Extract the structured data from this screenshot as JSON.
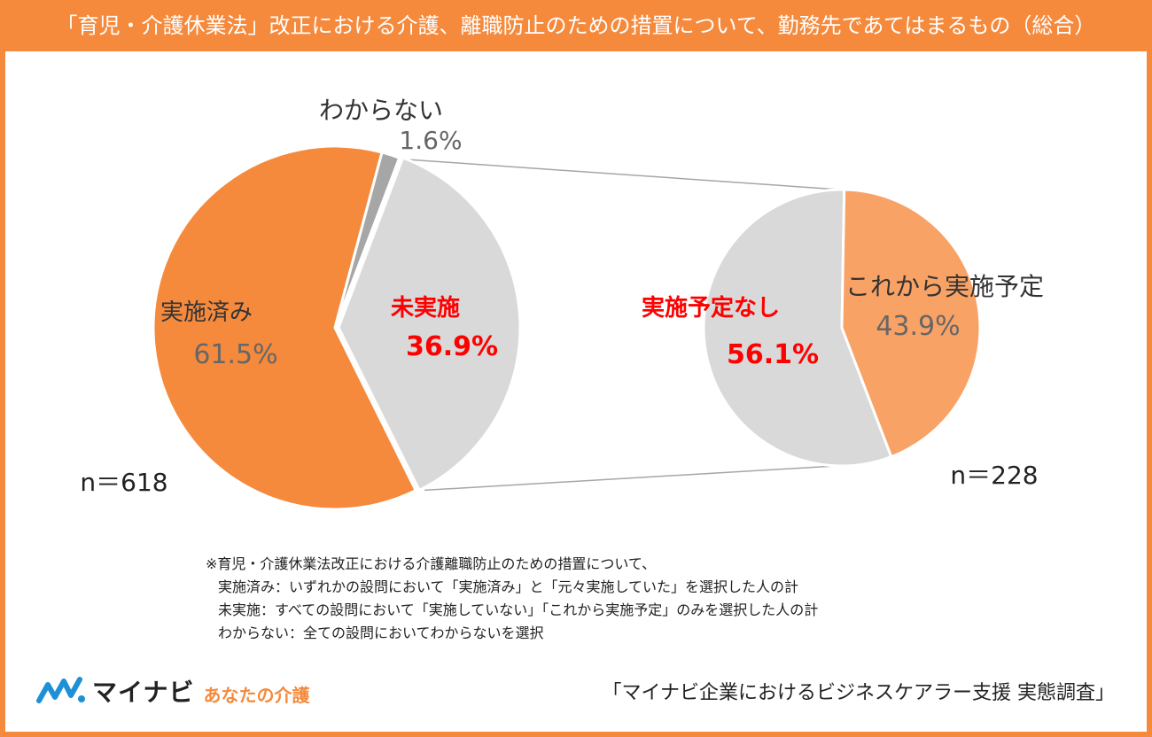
{
  "title": "「育児・介護休業法」改正における介護、離職防止のための措置について、勤務先であてはまるもの（総合）",
  "chart_data": [
    {
      "type": "pie",
      "slices": [
        {
          "label": "実施済み",
          "value": 61.5,
          "value_label": "61.5%",
          "color": "#F58A3D",
          "label_color": "#333333",
          "value_color": "#666666"
        },
        {
          "label": "わからない",
          "value": 1.6,
          "value_label": "1.6%",
          "color": "#A6A6A6",
          "label_color": "#333333",
          "value_color": "#666666"
        },
        {
          "label": "未実施",
          "value": 36.9,
          "value_label": "36.9%",
          "color": "#D9D9D9",
          "label_color": "#FF0000",
          "value_color": "#FF0000",
          "exploded": true
        }
      ],
      "n_label": "n＝618"
    },
    {
      "type": "pie",
      "slices": [
        {
          "label": "これから実施予定",
          "value": 43.9,
          "value_label": "43.9%",
          "color": "#F9A266",
          "label_color": "#333333",
          "value_color": "#666666"
        },
        {
          "label": "実施予定なし",
          "value": 56.1,
          "value_label": "56.1%",
          "color": "#D9D9D9",
          "label_color": "#FF0000",
          "value_color": "#FF0000"
        }
      ],
      "n_label": "n＝228"
    }
  ],
  "note": {
    "line1": "※育児・介護休業法改正における介護離職防止のための措置について、",
    "line2": "実施済み：いずれかの設問において「実施済み」と「元々実施していた」を選択した人の計",
    "line3": "未実施：すべての設問において「実施していない」「これから実施予定」のみを選択した人の計",
    "line4": "わからない：全ての設問においてわからないを選択"
  },
  "logo": {
    "brand": "マイナビ",
    "sub": "あなたの介護"
  },
  "source": "「マイナビ企業におけるビジネスケアラー支援 実態調査」",
  "colors": {
    "accent": "#F58A3D",
    "highlight": "#FF0000"
  }
}
